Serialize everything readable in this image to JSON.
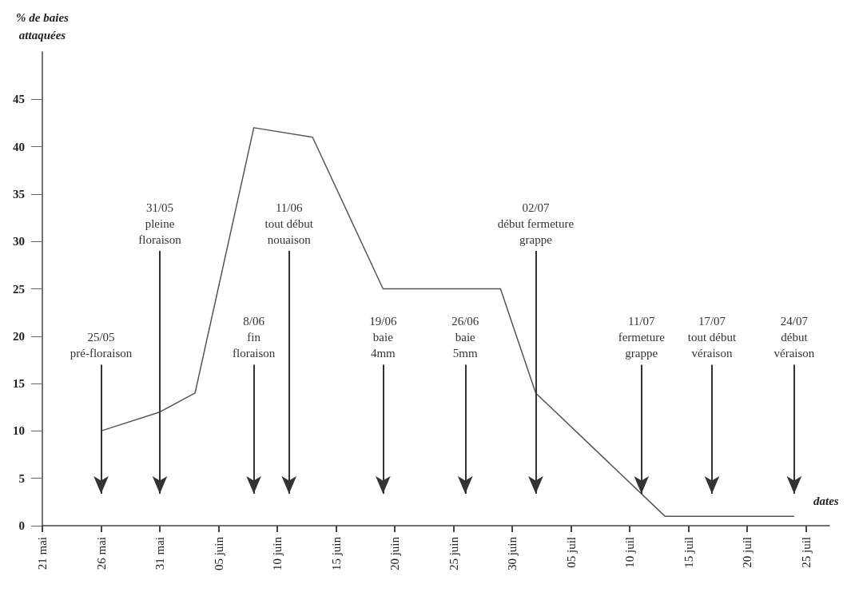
{
  "chart_data": {
    "type": "line",
    "xlabel": "dates",
    "ylabel": "% de baies\nattaquées",
    "color": "#555555",
    "x": [
      "--05-26",
      "--05-31",
      "--06-03",
      "--06-08",
      "--06-13",
      "--06-19",
      "--06-29",
      "--07-02",
      "--07-13",
      "--07-24"
    ],
    "values": [
      10,
      12,
      14,
      42,
      41,
      25,
      25,
      14,
      1,
      1
    ],
    "xlim": [
      "--05-21",
      "--07-27"
    ],
    "xticks": [
      {
        "value": "--05-21",
        "label": "21 mai"
      },
      {
        "value": "--05-26",
        "label": "26 mai"
      },
      {
        "value": "--05-31",
        "label": "31 mai"
      },
      {
        "value": "--06-05",
        "label": "05 juin"
      },
      {
        "value": "--06-10",
        "label": "10 juin"
      },
      {
        "value": "--06-15",
        "label": "15 juin"
      },
      {
        "value": "--06-20",
        "label": "20 juin"
      },
      {
        "value": "--06-25",
        "label": "25 juin"
      },
      {
        "value": "--06-30",
        "label": "30 juin"
      },
      {
        "value": "--07-05",
        "label": "05 juil"
      },
      {
        "value": "--07-10",
        "label": "10 juil"
      },
      {
        "value": "--07-15",
        "label": "15 juil"
      },
      {
        "value": "--07-20",
        "label": "20 juil"
      },
      {
        "value": "--07-25",
        "label": "25 juil"
      }
    ],
    "ylim": [
      0,
      50
    ],
    "yticks": [
      0,
      5,
      10,
      15,
      20,
      25,
      30,
      35,
      40,
      45
    ],
    "grid": false,
    "marker": "none",
    "line_style": "solid",
    "ref_lines": [
      {
        "axis": "x",
        "value": "--05-26",
        "label": "25/05\npré-floraison",
        "color": "#333333"
      },
      {
        "axis": "x",
        "value": "--05-31",
        "label": "31/05\npleine\nfloraison",
        "color": "#333333"
      },
      {
        "axis": "x",
        "value": "--06-08",
        "label": "8/06\nfin\nfloraison",
        "color": "#333333"
      },
      {
        "axis": "x",
        "value": "--06-11",
        "label": "11/06\ntout début\nnouaison",
        "color": "#333333"
      },
      {
        "axis": "x",
        "value": "--06-19",
        "label": "19/06\nbaie\n4mm",
        "color": "#333333"
      },
      {
        "axis": "x",
        "value": "--06-26",
        "label": "26/06\nbaie\n5mm",
        "color": "#333333"
      },
      {
        "axis": "x",
        "value": "--07-02",
        "label": "02/07\ndébut fermeture\ngrappe",
        "color": "#333333"
      },
      {
        "axis": "x",
        "value": "--07-11",
        "label": "11/07\nfermeture\ngrappe",
        "color": "#333333"
      },
      {
        "axis": "x",
        "value": "--07-17",
        "label": "17/07\ntout début\nvéraison",
        "color": "#333333"
      },
      {
        "axis": "x",
        "value": "--07-24",
        "label": "24/07\ndébut\nvéraison",
        "color": "#333333"
      }
    ]
  }
}
